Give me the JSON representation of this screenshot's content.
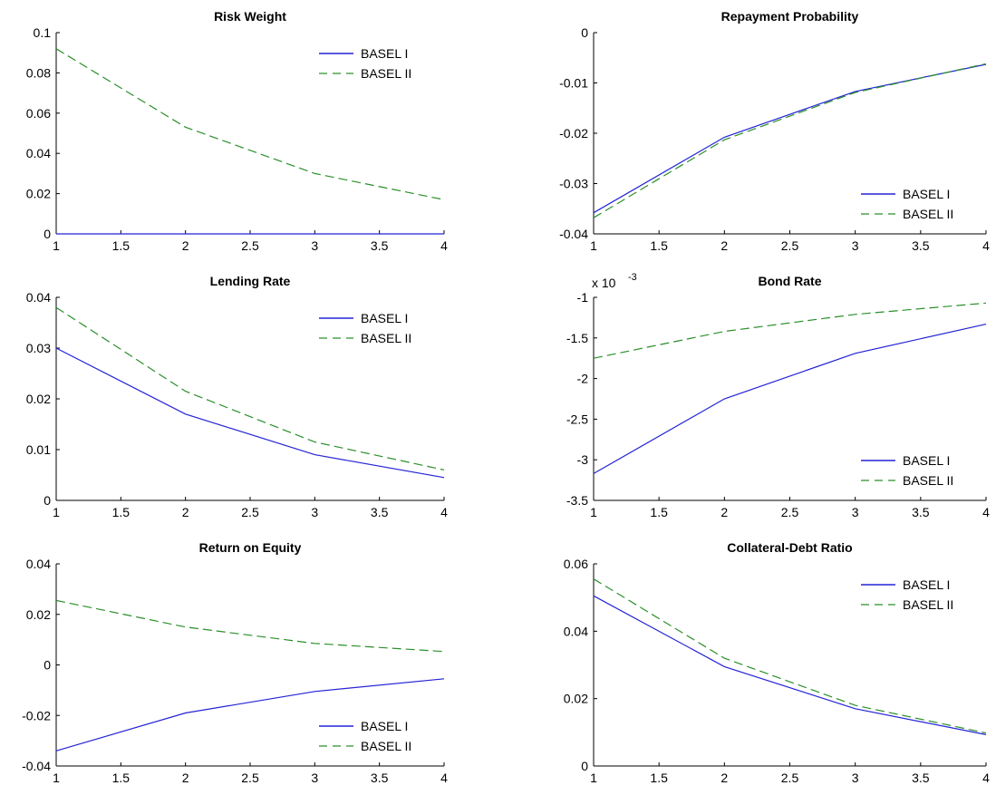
{
  "colors": {
    "basel1": "#2323d6",
    "basel2": "#2a8f2a",
    "axis": "#000000"
  },
  "chart_data": [
    {
      "type": "line",
      "title": "Risk Weight",
      "x": [
        1,
        2,
        3,
        4
      ],
      "xlim": [
        1,
        4
      ],
      "ylim": [
        0,
        0.1
      ],
      "xticks": [
        "1",
        "1.5",
        "2",
        "2.5",
        "3",
        "3.5",
        "4"
      ],
      "yticks": [
        "0",
        "0.02",
        "0.04",
        "0.06",
        "0.08",
        "0.1"
      ],
      "legend": "top-right",
      "series": [
        {
          "name": "BASEL I",
          "style": "solid",
          "values": [
            0,
            0,
            0,
            0
          ]
        },
        {
          "name": "BASEL II",
          "style": "dashed",
          "values": [
            0.092,
            0.053,
            0.03,
            0.017
          ]
        }
      ]
    },
    {
      "type": "line",
      "title": "Repayment Probability",
      "x": [
        1,
        2,
        3,
        4
      ],
      "xlim": [
        1,
        4
      ],
      "ylim": [
        -0.04,
        0
      ],
      "xticks": [
        "1",
        "1.5",
        "2",
        "2.5",
        "3",
        "3.5",
        "4"
      ],
      "yticks": [
        "-0.04",
        "-0.03",
        "-0.02",
        "-0.01",
        "0"
      ],
      "legend": "bottom-right",
      "series": [
        {
          "name": "BASEL I",
          "style": "solid",
          "values": [
            -0.0358,
            -0.0208,
            -0.0117,
            -0.0063
          ]
        },
        {
          "name": "BASEL II",
          "style": "dashed",
          "values": [
            -0.0368,
            -0.0213,
            -0.0119,
            -0.0062
          ]
        }
      ]
    },
    {
      "type": "line",
      "title": "Lending Rate",
      "x": [
        1,
        2,
        3,
        4
      ],
      "xlim": [
        1,
        4
      ],
      "ylim": [
        0,
        0.04
      ],
      "xticks": [
        "1",
        "1.5",
        "2",
        "2.5",
        "3",
        "3.5",
        "4"
      ],
      "yticks": [
        "0",
        "0.01",
        "0.02",
        "0.03",
        "0.04"
      ],
      "legend": "top-right",
      "series": [
        {
          "name": "BASEL I",
          "style": "solid",
          "values": [
            0.03,
            0.017,
            0.009,
            0.0045
          ]
        },
        {
          "name": "BASEL II",
          "style": "dashed",
          "values": [
            0.038,
            0.0215,
            0.0115,
            0.006
          ]
        }
      ]
    },
    {
      "type": "line",
      "title": "Bond Rate",
      "exponent_label": "x 10",
      "exponent_power": "-3",
      "x": [
        1,
        2,
        3,
        4
      ],
      "xlim": [
        1,
        4
      ],
      "ylim": [
        -3.5,
        -1
      ],
      "xticks": [
        "1",
        "1.5",
        "2",
        "2.5",
        "3",
        "3.5",
        "4"
      ],
      "yticks": [
        "-3.5",
        "-3",
        "-2.5",
        "-2",
        "-1.5",
        "-1"
      ],
      "legend": "bottom-right",
      "series": [
        {
          "name": "BASEL I",
          "style": "solid",
          "values": [
            -3.17,
            -2.25,
            -1.69,
            -1.33
          ]
        },
        {
          "name": "BASEL II",
          "style": "dashed",
          "values": [
            -1.75,
            -1.42,
            -1.21,
            -1.07
          ]
        }
      ]
    },
    {
      "type": "line",
      "title": "Return on Equity",
      "x": [
        1,
        2,
        3,
        4
      ],
      "xlim": [
        1,
        4
      ],
      "ylim": [
        -0.04,
        0.04
      ],
      "xticks": [
        "1",
        "1.5",
        "2",
        "2.5",
        "3",
        "3.5",
        "4"
      ],
      "yticks": [
        "-0.04",
        "-0.02",
        "0",
        "0.02",
        "0.04"
      ],
      "legend": "bottom-right",
      "series": [
        {
          "name": "BASEL I",
          "style": "solid",
          "values": [
            -0.034,
            -0.019,
            -0.0105,
            -0.0055
          ]
        },
        {
          "name": "BASEL II",
          "style": "dashed",
          "values": [
            0.0255,
            0.015,
            0.0085,
            0.0053
          ]
        }
      ]
    },
    {
      "type": "line",
      "title": "Collateral-Debt Ratio",
      "x": [
        1,
        2,
        3,
        4
      ],
      "xlim": [
        1,
        4
      ],
      "ylim": [
        0,
        0.06
      ],
      "xticks": [
        "1",
        "1.5",
        "2",
        "2.5",
        "3",
        "3.5",
        "4"
      ],
      "yticks": [
        "0",
        "0.02",
        "0.04",
        "0.06"
      ],
      "legend": "top-right",
      "series": [
        {
          "name": "BASEL I",
          "style": "solid",
          "values": [
            0.0505,
            0.0295,
            0.017,
            0.0093
          ]
        },
        {
          "name": "BASEL II",
          "style": "dashed",
          "values": [
            0.0555,
            0.032,
            0.018,
            0.0098
          ]
        }
      ]
    }
  ]
}
